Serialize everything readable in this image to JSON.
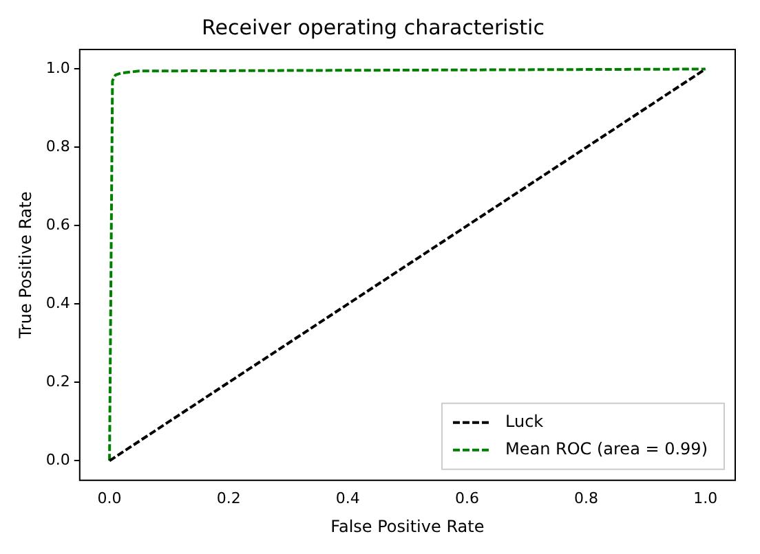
{
  "chart_data": {
    "type": "line",
    "title": "Receiver operating characteristic",
    "xlabel": "False Positive Rate",
    "ylabel": "True Positive Rate",
    "series": [
      {
        "name": "Luck",
        "color": "#000000",
        "x": [
          0,
          1
        ],
        "values": [
          0,
          1
        ]
      },
      {
        "name": "Mean ROC (area = 0.99)",
        "color": "#008000",
        "x": [
          0,
          0.005,
          0.01,
          0.02,
          0.05,
          1
        ],
        "values": [
          0,
          0.97,
          0.985,
          0.99,
          0.995,
          1
        ]
      }
    ],
    "xlim": [
      -0.05,
      1.05
    ],
    "ylim": [
      -0.05,
      1.05
    ],
    "xticks": [
      {
        "value": 0,
        "label": "0.0"
      },
      0.2,
      0.4,
      0.6,
      0.8,
      {
        "value": 1,
        "label": "1.0"
      }
    ],
    "yticks": [
      {
        "value": 0,
        "label": "0.0"
      },
      0.2,
      0.4,
      0.6,
      0.8,
      {
        "value": 1,
        "label": "1.0"
      }
    ],
    "grid": false,
    "legend": "bottom right",
    "marker": "none",
    "line_style": "dashed"
  }
}
